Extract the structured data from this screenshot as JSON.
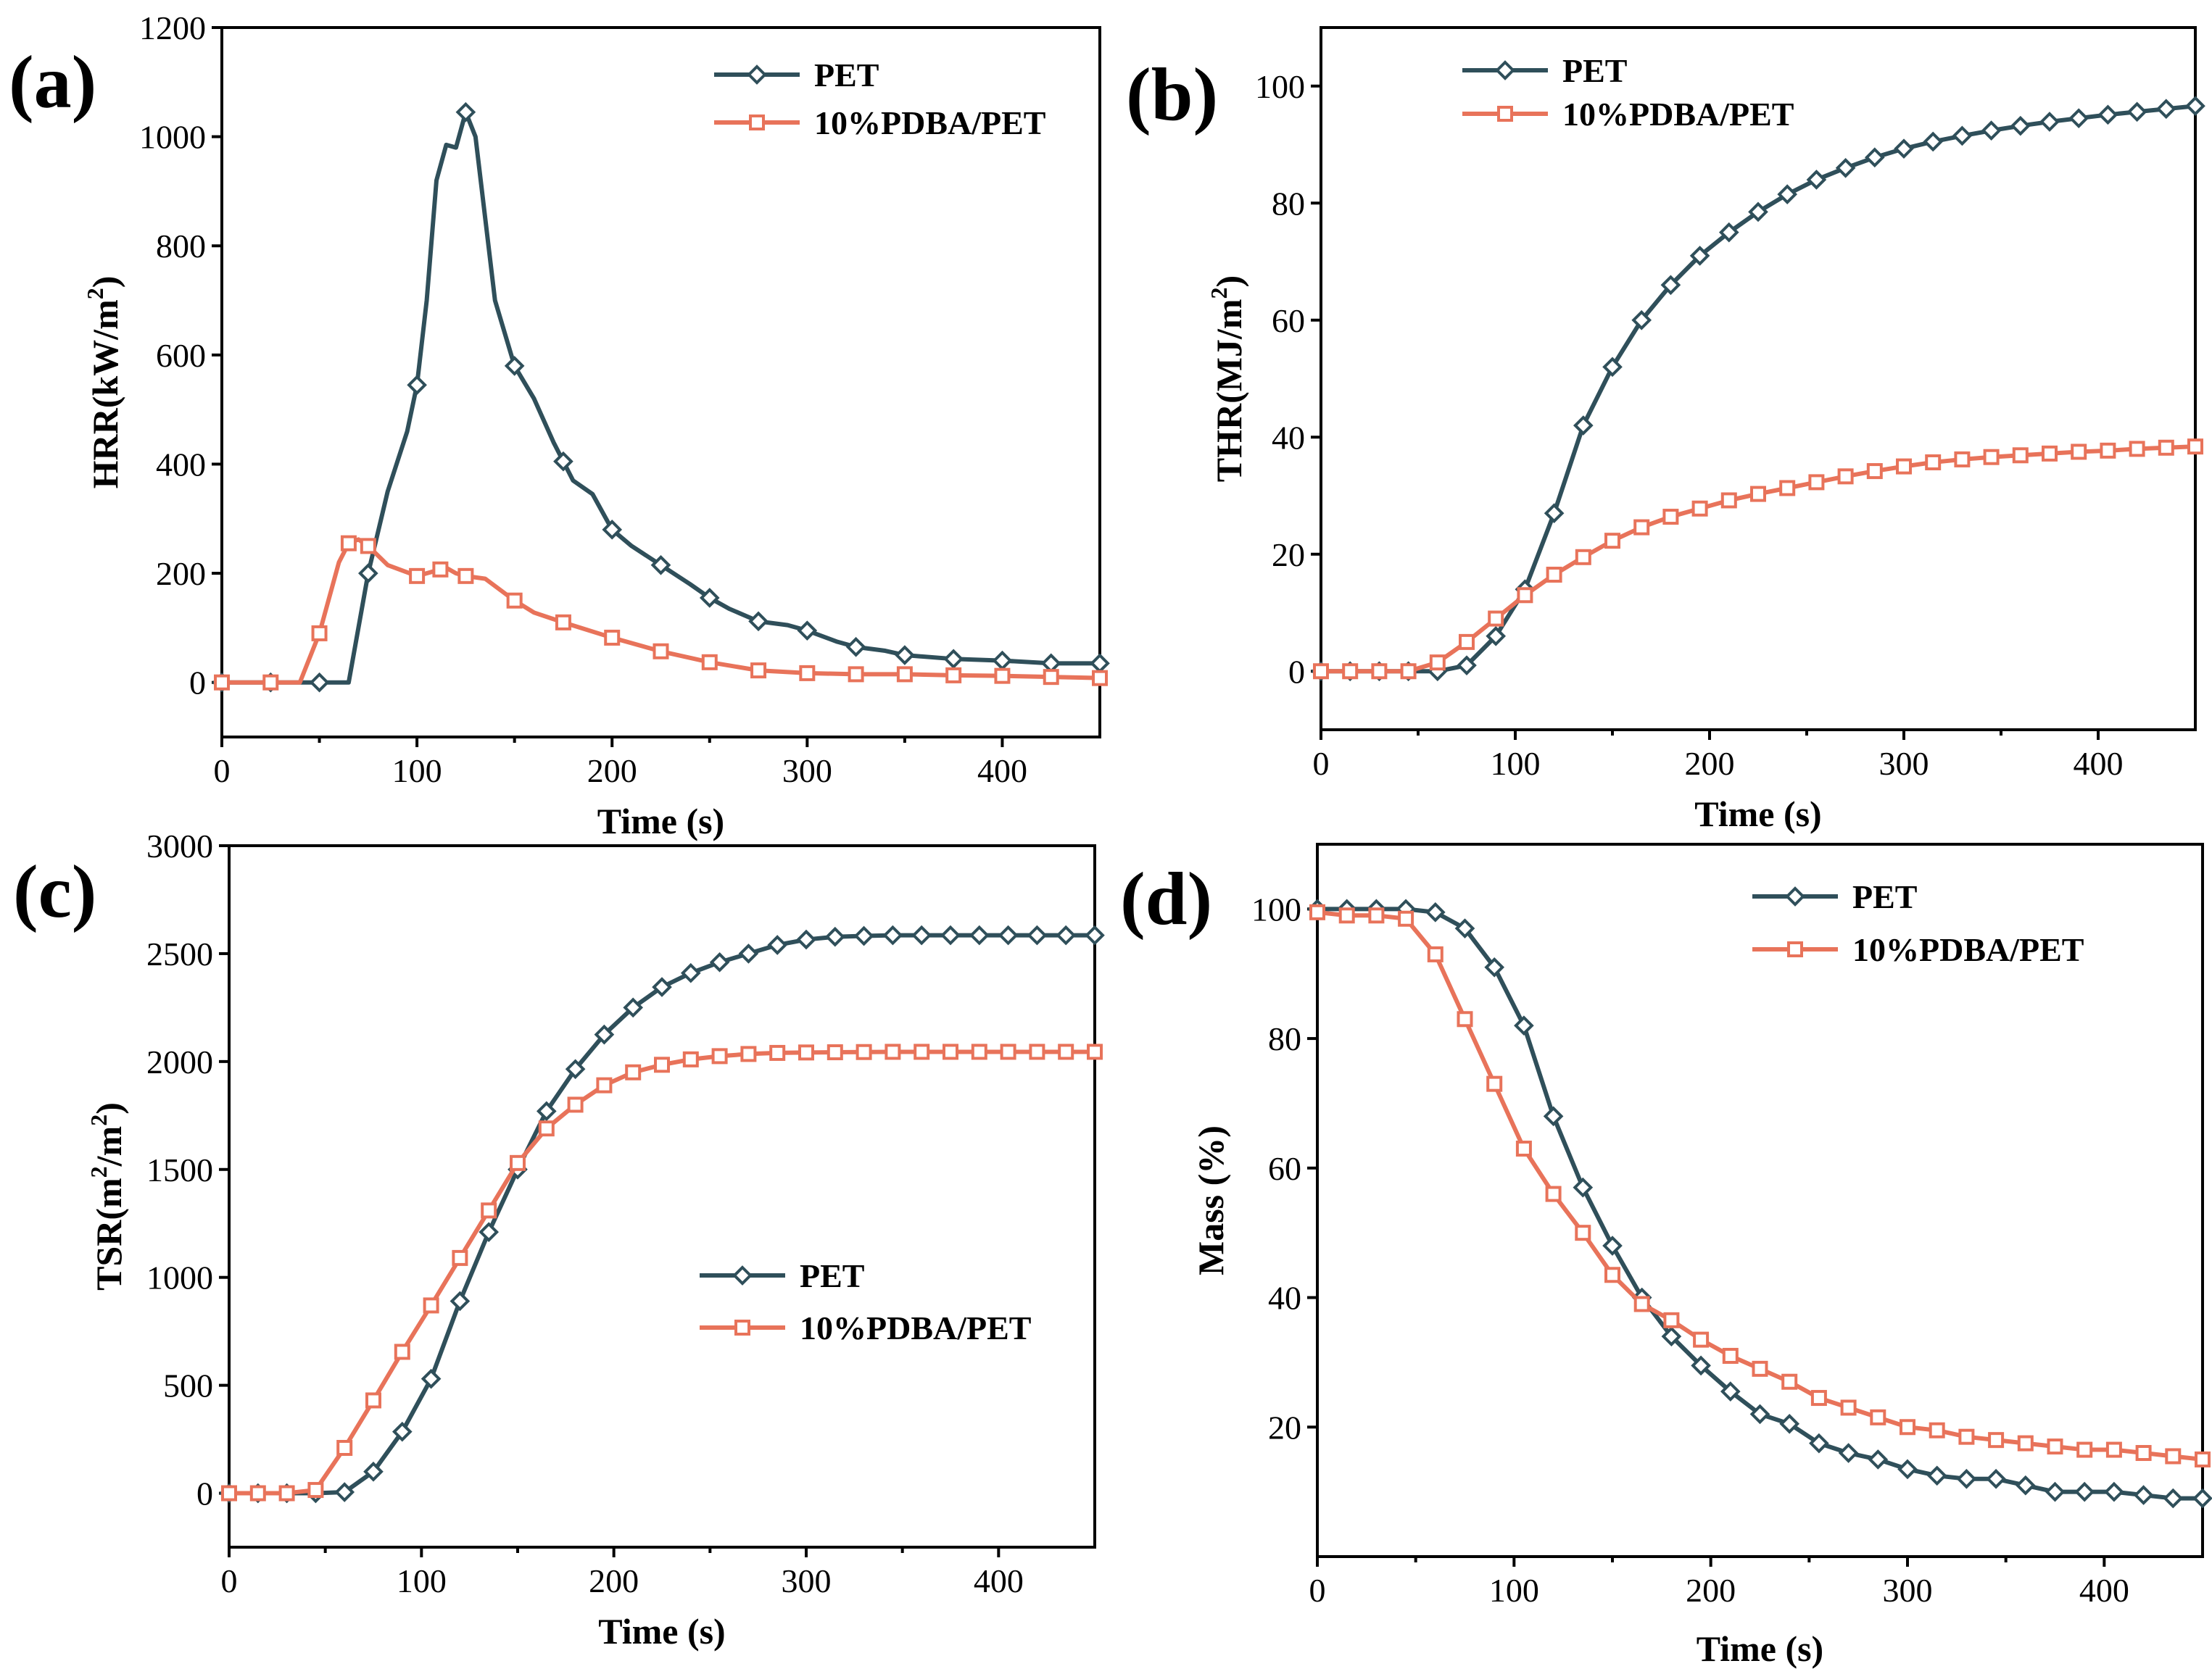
{
  "colors": {
    "PET": "#2f4f5a",
    "PDBA": "#e8735a"
  },
  "chart_data": [
    {
      "id": "a",
      "panel_label": "(a)",
      "type": "line",
      "title": "",
      "xlabel": "Time (s)",
      "ylabel_main": "HRR(kW/m",
      "ylabel_sup": "2",
      "ylabel_end": ")",
      "xlim": [
        0,
        450
      ],
      "ylim": [
        -100,
        1200
      ],
      "xticks": [
        0,
        100,
        200,
        300,
        400
      ],
      "yticks": [
        0,
        200,
        400,
        600,
        800,
        1000,
        1200
      ],
      "legend_position": "top-right",
      "series": [
        {
          "name": "PET",
          "marker": "diamond",
          "color_key": "PET",
          "x": [
            0,
            25,
            50,
            65,
            75,
            85,
            95,
            100,
            105,
            110,
            115,
            120,
            125,
            130,
            140,
            150,
            160,
            170,
            180,
            190,
            200,
            210,
            225,
            240,
            250,
            260,
            275,
            290,
            300,
            315,
            325,
            340,
            350,
            375,
            400,
            425,
            450
          ],
          "y": [
            0,
            0,
            0,
            0,
            200,
            350,
            460,
            545,
            700,
            920,
            985,
            980,
            1045,
            1000,
            700,
            580,
            520,
            440,
            370,
            345,
            280,
            250,
            215,
            180,
            155,
            135,
            112,
            105,
            95,
            75,
            65,
            58,
            50,
            43,
            40,
            35,
            35
          ],
          "markers_x": [
            0,
            25,
            50,
            75,
            100,
            125,
            150,
            175,
            200,
            225,
            250,
            275,
            300,
            325,
            350,
            375,
            400,
            425,
            450
          ]
        },
        {
          "name": "10%PDBA/PET",
          "marker": "square",
          "color_key": "PDBA",
          "x": [
            0,
            25,
            40,
            50,
            60,
            65,
            70,
            75,
            85,
            100,
            110,
            115,
            120,
            125,
            135,
            150,
            160,
            175,
            200,
            225,
            250,
            275,
            300,
            325,
            350,
            375,
            400,
            425,
            450
          ],
          "y": [
            0,
            0,
            0,
            90,
            220,
            255,
            262,
            250,
            215,
            195,
            205,
            210,
            200,
            195,
            190,
            150,
            128,
            110,
            82,
            57,
            37,
            22,
            17,
            15,
            15,
            13,
            12,
            10,
            8
          ],
          "markers_x": [
            0,
            25,
            50,
            65,
            75,
            100,
            112,
            125,
            150,
            175,
            200,
            225,
            250,
            275,
            300,
            325,
            350,
            375,
            400,
            425,
            450
          ]
        }
      ]
    },
    {
      "id": "b",
      "panel_label": "(b)",
      "type": "line",
      "title": "",
      "xlabel": "Time (s)",
      "ylabel_main": "THR(MJ/m",
      "ylabel_sup": "2",
      "ylabel_end": ")",
      "xlim": [
        0,
        450
      ],
      "ylim": [
        -10,
        110
      ],
      "xticks": [
        0,
        100,
        200,
        300,
        400
      ],
      "yticks": [
        0,
        20,
        40,
        60,
        80,
        100
      ],
      "legend_position": "top-left",
      "series": [
        {
          "name": "PET",
          "marker": "diamond",
          "color_key": "PET",
          "x": [
            0,
            15,
            30,
            45,
            60,
            75,
            90,
            105,
            120,
            135,
            150,
            165,
            180,
            195,
            210,
            225,
            240,
            255,
            270,
            285,
            300,
            315,
            330,
            345,
            360,
            375,
            390,
            405,
            420,
            435,
            450
          ],
          "y": [
            0,
            0,
            0,
            0,
            0,
            1,
            6,
            14,
            27,
            42,
            52,
            60,
            66,
            71,
            75,
            78.5,
            81.5,
            84,
            86,
            87.8,
            89.3,
            90.5,
            91.5,
            92.4,
            93.2,
            93.9,
            94.5,
            95.1,
            95.6,
            96.1,
            96.6
          ]
        },
        {
          "name": "10%PDBA/PET",
          "marker": "square",
          "color_key": "PDBA",
          "x": [
            0,
            15,
            30,
            45,
            60,
            75,
            90,
            105,
            120,
            135,
            150,
            165,
            180,
            195,
            210,
            225,
            240,
            255,
            270,
            285,
            300,
            315,
            330,
            345,
            360,
            375,
            390,
            405,
            420,
            435,
            450
          ],
          "y": [
            0,
            0,
            0,
            0,
            1.5,
            5,
            9,
            13,
            16.5,
            19.5,
            22.3,
            24.6,
            26.4,
            27.8,
            29.2,
            30.3,
            31.3,
            32.3,
            33.3,
            34.2,
            35,
            35.7,
            36.2,
            36.6,
            36.9,
            37.2,
            37.5,
            37.7,
            38,
            38.2,
            38.4
          ]
        }
      ]
    },
    {
      "id": "c",
      "panel_label": "(c)",
      "type": "line",
      "title": "",
      "xlabel": "Time (s)",
      "ylabel_main": "TSR(m",
      "ylabel_sup": "2",
      "ylabel_mid": "/m",
      "ylabel_sup2": "2",
      "ylabel_end": ")",
      "xlim": [
        0,
        450
      ],
      "ylim": [
        -250,
        3000
      ],
      "xticks": [
        0,
        100,
        200,
        300,
        400
      ],
      "yticks": [
        0,
        500,
        1000,
        1500,
        2000,
        2500,
        3000
      ],
      "legend_position": "center-right",
      "series": [
        {
          "name": "PET",
          "marker": "diamond",
          "color_key": "PET",
          "x": [
            0,
            15,
            30,
            45,
            60,
            75,
            90,
            105,
            120,
            135,
            150,
            165,
            180,
            195,
            210,
            225,
            240,
            255,
            270,
            285,
            300,
            315,
            330,
            345,
            360,
            375,
            390,
            405,
            420,
            435,
            450
          ],
          "y": [
            0,
            0,
            0,
            0,
            5,
            100,
            285,
            530,
            890,
            1210,
            1500,
            1770,
            1965,
            2125,
            2250,
            2345,
            2410,
            2460,
            2500,
            2540,
            2565,
            2578,
            2582,
            2585,
            2585,
            2585,
            2585,
            2585,
            2585,
            2585,
            2585
          ]
        },
        {
          "name": "10%PDBA/PET",
          "marker": "square",
          "color_key": "PDBA",
          "x": [
            0,
            15,
            30,
            45,
            60,
            75,
            90,
            105,
            120,
            135,
            150,
            165,
            180,
            195,
            210,
            225,
            240,
            255,
            270,
            285,
            300,
            315,
            330,
            345,
            360,
            375,
            390,
            405,
            420,
            435,
            450
          ],
          "y": [
            0,
            0,
            0,
            15,
            210,
            430,
            655,
            870,
            1090,
            1310,
            1530,
            1690,
            1800,
            1890,
            1950,
            1985,
            2010,
            2025,
            2035,
            2040,
            2042,
            2043,
            2044,
            2045,
            2045,
            2045,
            2045,
            2045,
            2045,
            2045,
            2045
          ]
        }
      ]
    },
    {
      "id": "d",
      "panel_label": "(d)",
      "type": "line",
      "title": "",
      "xlabel": "Time (s)",
      "ylabel_main": "Mass (%)",
      "xlim": [
        0,
        450
      ],
      "ylim": [
        0,
        110
      ],
      "xticks": [
        0,
        100,
        200,
        300,
        400
      ],
      "yticks": [
        20,
        40,
        60,
        80,
        100
      ],
      "legend_position": "top-right",
      "series": [
        {
          "name": "PET",
          "marker": "diamond",
          "color_key": "PET",
          "x": [
            0,
            15,
            30,
            45,
            60,
            75,
            90,
            105,
            120,
            135,
            150,
            165,
            180,
            195,
            210,
            225,
            240,
            255,
            270,
            285,
            300,
            315,
            330,
            345,
            360,
            375,
            390,
            405,
            420,
            435,
            450
          ],
          "y": [
            100,
            100,
            100,
            100,
            99.5,
            97,
            91,
            82,
            68,
            57,
            48,
            40,
            34,
            29.5,
            25.5,
            22,
            20.5,
            17.5,
            16,
            15,
            13.5,
            12.5,
            12,
            12,
            11,
            10,
            10,
            10,
            9.5,
            9,
            9
          ]
        },
        {
          "name": "10%PDBA/PET",
          "marker": "square",
          "color_key": "PDBA",
          "x": [
            0,
            15,
            30,
            45,
            60,
            75,
            90,
            105,
            120,
            135,
            150,
            165,
            180,
            195,
            210,
            225,
            240,
            255,
            270,
            285,
            300,
            315,
            330,
            345,
            360,
            375,
            390,
            405,
            420,
            435,
            450
          ],
          "y": [
            99.5,
            99,
            99,
            98.5,
            93,
            83,
            73,
            63,
            56,
            50,
            43.5,
            39,
            36.5,
            33.5,
            31,
            29,
            27,
            24.5,
            23,
            21.5,
            20,
            19.5,
            18.5,
            18,
            17.5,
            17,
            16.5,
            16.5,
            16,
            15.5,
            15
          ]
        }
      ]
    }
  ]
}
